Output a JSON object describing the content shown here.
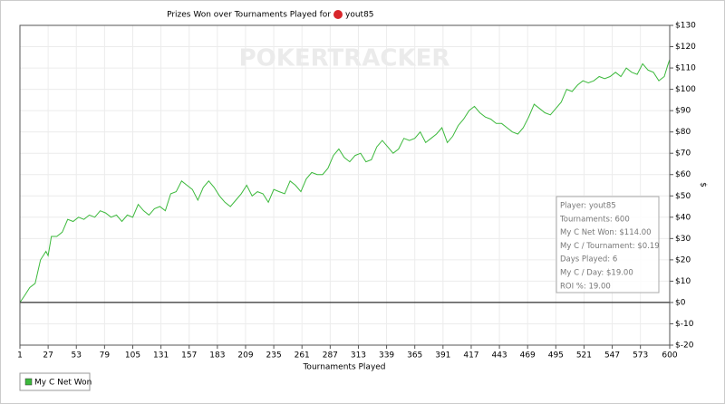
{
  "chart_data": {
    "type": "line",
    "title": "Prizes Won over Tournaments Played for",
    "player": "yout85",
    "watermark": "POKERTRACKER",
    "x_label": "Tournaments Played",
    "y_label": "$",
    "x": [
      1,
      5,
      10,
      15,
      20,
      25,
      27,
      30,
      35,
      40,
      45,
      50,
      55,
      60,
      65,
      70,
      75,
      80,
      85,
      90,
      95,
      100,
      105,
      110,
      115,
      120,
      125,
      130,
      135,
      140,
      145,
      150,
      155,
      160,
      165,
      170,
      175,
      180,
      185,
      190,
      195,
      200,
      205,
      210,
      215,
      220,
      225,
      230,
      235,
      240,
      245,
      250,
      255,
      260,
      265,
      270,
      275,
      280,
      285,
      290,
      295,
      300,
      305,
      310,
      315,
      320,
      325,
      330,
      335,
      340,
      345,
      350,
      355,
      360,
      365,
      370,
      375,
      380,
      385,
      390,
      395,
      400,
      405,
      410,
      415,
      420,
      425,
      430,
      435,
      440,
      445,
      450,
      455,
      460,
      465,
      470,
      475,
      480,
      485,
      490,
      495,
      500,
      505,
      510,
      515,
      520,
      525,
      530,
      535,
      540,
      545,
      550,
      555,
      560,
      565,
      570,
      575,
      580,
      585,
      590,
      595,
      598,
      600
    ],
    "series": [
      {
        "name": "My C Net Won",
        "color": "#3cb93c",
        "values": [
          0,
          3,
          7,
          9,
          20,
          24,
          22,
          31,
          31,
          33,
          39,
          38,
          40,
          39,
          41,
          40,
          43,
          42,
          40,
          41,
          38,
          41,
          40,
          46,
          43,
          41,
          44,
          45,
          43,
          51,
          52,
          57,
          55,
          53,
          48,
          54,
          57,
          54,
          50,
          47,
          45,
          48,
          51,
          55,
          50,
          52,
          51,
          47,
          53,
          52,
          51,
          57,
          55,
          52,
          58,
          61,
          60,
          60,
          63,
          69,
          72,
          68,
          66,
          69,
          70,
          66,
          67,
          73,
          76,
          73,
          70,
          72,
          77,
          76,
          77,
          80,
          75,
          77,
          79,
          82,
          75,
          78,
          83,
          86,
          90,
          92,
          89,
          87,
          86,
          84,
          84,
          82,
          80,
          79,
          82,
          87,
          93,
          91,
          89,
          88,
          91,
          94,
          100,
          99,
          102,
          104,
          103,
          104,
          106,
          105,
          106,
          108,
          106,
          110,
          108,
          107,
          112,
          109,
          108,
          104,
          106,
          111,
          114
        ]
      }
    ],
    "xlim": [
      1,
      600
    ],
    "xticks": [
      1,
      27,
      53,
      79,
      105,
      131,
      157,
      183,
      209,
      235,
      261,
      287,
      313,
      339,
      365,
      391,
      417,
      443,
      469,
      495,
      521,
      547,
      573,
      600
    ],
    "ylim": [
      -20,
      130
    ],
    "yticks": [
      {
        "value": -20,
        "label": "$-20"
      },
      {
        "value": -10,
        "label": "$-10"
      },
      {
        "value": 0,
        "label": "$0"
      },
      {
        "value": 10,
        "label": "$10"
      },
      {
        "value": 20,
        "label": "$20"
      },
      {
        "value": 30,
        "label": "$30"
      },
      {
        "value": 40,
        "label": "$40"
      },
      {
        "value": 50,
        "label": "$50"
      },
      {
        "value": 60,
        "label": "$60"
      },
      {
        "value": 70,
        "label": "$70"
      },
      {
        "value": 80,
        "label": "$80"
      },
      {
        "value": 90,
        "label": "$90"
      },
      {
        "value": 100,
        "label": "$100"
      },
      {
        "value": 110,
        "label": "$110"
      },
      {
        "value": 120,
        "label": "$120"
      },
      {
        "value": 130,
        "label": "$130"
      }
    ],
    "grid": true,
    "info_box": [
      "Player: yout85",
      "Tournaments: 600",
      "My C Net Won: $114.00",
      "My C / Tournament: $0.19",
      "Days Played: 6",
      "My C / Day: $19.00",
      "ROI %: 19.00"
    ]
  }
}
